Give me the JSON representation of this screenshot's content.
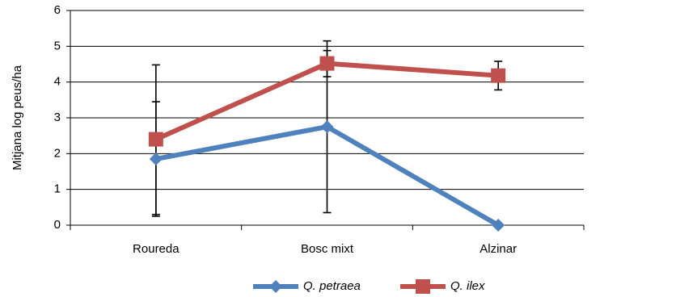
{
  "chart_data": {
    "type": "line",
    "title": "",
    "xlabel": "",
    "ylabel": "Mitjana log peus/ha",
    "categories": [
      "Roureda",
      "Bosc mixt",
      "Alzinar"
    ],
    "ylim": [
      0,
      6
    ],
    "yticks": [
      0,
      1,
      2,
      3,
      4,
      5,
      6
    ],
    "grid": true,
    "legend_position": "bottom",
    "series": [
      {
        "name": "Q. petraea",
        "values": [
          1.85,
          2.75,
          0
        ],
        "error_low": [
          0.3,
          0.35,
          null
        ],
        "error_high": [
          3.45,
          5.15,
          null
        ],
        "color": "#4F81BD",
        "marker": "diamond"
      },
      {
        "name": "Q. ilex",
        "values": [
          2.4,
          4.52,
          4.18
        ],
        "error_low": [
          0.25,
          4.15,
          3.78
        ],
        "error_high": [
          4.48,
          4.88,
          4.58
        ],
        "color": "#C0504D",
        "marker": "square"
      }
    ]
  }
}
